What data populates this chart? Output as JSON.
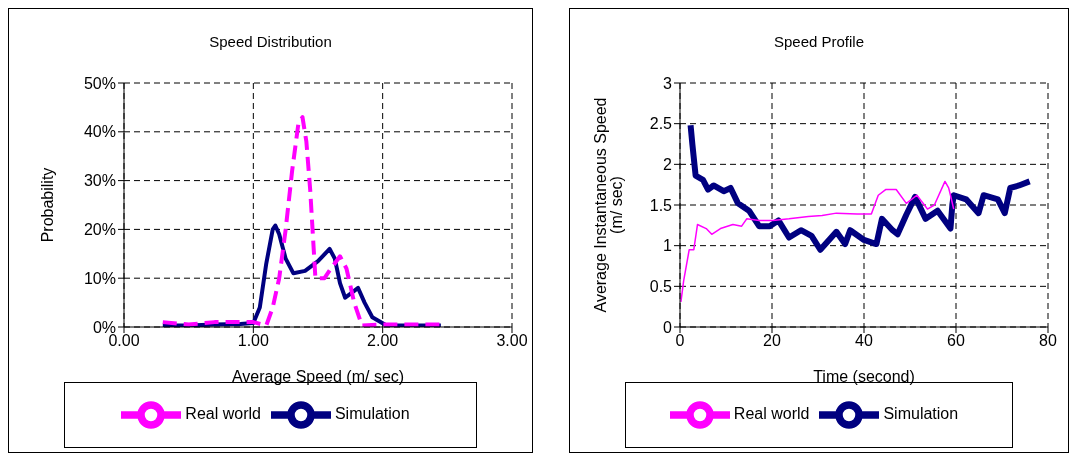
{
  "chart_data": [
    {
      "type": "line",
      "title": "Speed Distribution",
      "xlabel": "Average Speed (m/ sec)",
      "ylabel": "Probability",
      "xlim": [
        0,
        3
      ],
      "xticks": [
        {
          "value": 0,
          "label": "0.00"
        },
        {
          "value": 1,
          "label": "1.00"
        },
        {
          "value": 2,
          "label": "2.00"
        },
        {
          "value": 3,
          "label": "3.00"
        }
      ],
      "ylim": [
        0,
        50
      ],
      "yticks": [
        {
          "value": 0,
          "label": "0%"
        },
        {
          "value": 10,
          "label": "10%"
        },
        {
          "value": 20,
          "label": "20%"
        },
        {
          "value": 30,
          "label": "30%"
        },
        {
          "value": 40,
          "label": "40%"
        },
        {
          "value": 50,
          "label": "50%"
        }
      ],
      "grid": true,
      "legend": "bottom",
      "marker": "none",
      "series": [
        {
          "name": "Simulation",
          "color": "#000080",
          "line_style": "solid",
          "x": [
            0.3,
            0.5,
            0.7,
            0.9,
            1.0,
            1.05,
            1.1,
            1.15,
            1.17,
            1.2,
            1.25,
            1.31,
            1.4,
            1.5,
            1.59,
            1.63,
            1.67,
            1.71,
            1.76,
            1.81,
            1.86,
            1.92,
            2.03,
            2.2,
            2.45
          ],
          "values": [
            0.3,
            0.3,
            0.5,
            0.6,
            0.8,
            4,
            13,
            20,
            20.8,
            19,
            14,
            11,
            11.5,
            13.5,
            16,
            14,
            9,
            6,
            7,
            8,
            5,
            2,
            0.3,
            0.3,
            0.3
          ]
        },
        {
          "name": "Real world",
          "color": "#ff00ff",
          "line_style": "dashed",
          "x": [
            0.3,
            0.5,
            0.7,
            0.9,
            1.0,
            1.1,
            1.15,
            1.2,
            1.25,
            1.3,
            1.35,
            1.38,
            1.41,
            1.44,
            1.48,
            1.55,
            1.6,
            1.67,
            1.72,
            1.78,
            1.84,
            2.0,
            2.2,
            2.45
          ],
          "values": [
            1,
            0.5,
            1,
            1,
            1,
            0.3,
            4,
            10,
            20,
            32,
            42,
            43,
            38,
            28,
            10,
            10,
            12,
            14.5,
            12,
            5,
            0.3,
            0.5,
            0.5,
            0.5
          ]
        }
      ]
    },
    {
      "type": "line",
      "title": "Speed Profile",
      "xlabel": "Time (second)",
      "ylabel": "Average Instantaneous Speed (m/ sec)",
      "xlim": [
        0,
        80
      ],
      "xticks": [
        0,
        20,
        40,
        60,
        80
      ],
      "ylim": [
        0,
        3
      ],
      "yticks": [
        0,
        0.5,
        1,
        1.5,
        2,
        2.5,
        3
      ],
      "grid": true,
      "legend": "bottom",
      "marker": "none",
      "series": [
        {
          "name": "Simulation",
          "color": "#000080",
          "line_style": "solid",
          "x": [
            2.3,
            2.7,
            3.4,
            5,
            6.1,
            7.3,
            9.5,
            11,
            12.6,
            15,
            17.2,
            19.5,
            21.4,
            23.7,
            26.3,
            28.6,
            30.5,
            34,
            35.9,
            37,
            40,
            42.7,
            43.9,
            46.2,
            47.3,
            49.2,
            51.1,
            53.4,
            56,
            58.8,
            59.2,
            59.5,
            62.2,
            64.9,
            66,
            69.1,
            70.6,
            71.8,
            73.7,
            76
          ],
          "values": [
            2.48,
            2.24,
            1.86,
            1.81,
            1.69,
            1.74,
            1.67,
            1.71,
            1.52,
            1.43,
            1.24,
            1.24,
            1.31,
            1.1,
            1.19,
            1.12,
            0.95,
            1.17,
            1.02,
            1.19,
            1.07,
            1.02,
            1.33,
            1.19,
            1.14,
            1.38,
            1.6,
            1.33,
            1.43,
            1.21,
            1.5,
            1.62,
            1.57,
            1.4,
            1.62,
            1.57,
            1.4,
            1.71,
            1.74,
            1.79
          ]
        },
        {
          "name": "Real world",
          "color": "#ff00ff",
          "line_style": "solid",
          "x": [
            0.2,
            0.8,
            2,
            3,
            3.8,
            5.7,
            6.9,
            8.8,
            11.5,
            13.4,
            14.5,
            17.2,
            20.2,
            23.7,
            27.9,
            30.9,
            34,
            38.5,
            41.6,
            43.1,
            44.7,
            47,
            49.2,
            51.5,
            53.8,
            55.3,
            57.6,
            58.4,
            58.8,
            59.5
          ],
          "values": [
            0.31,
            0.57,
            0.95,
            0.95,
            1.26,
            1.21,
            1.14,
            1.21,
            1.26,
            1.24,
            1.33,
            1.31,
            1.31,
            1.33,
            1.36,
            1.37,
            1.4,
            1.39,
            1.39,
            1.62,
            1.69,
            1.69,
            1.52,
            1.62,
            1.45,
            1.5,
            1.79,
            1.71,
            1.62,
            1.45
          ]
        }
      ]
    }
  ]
}
